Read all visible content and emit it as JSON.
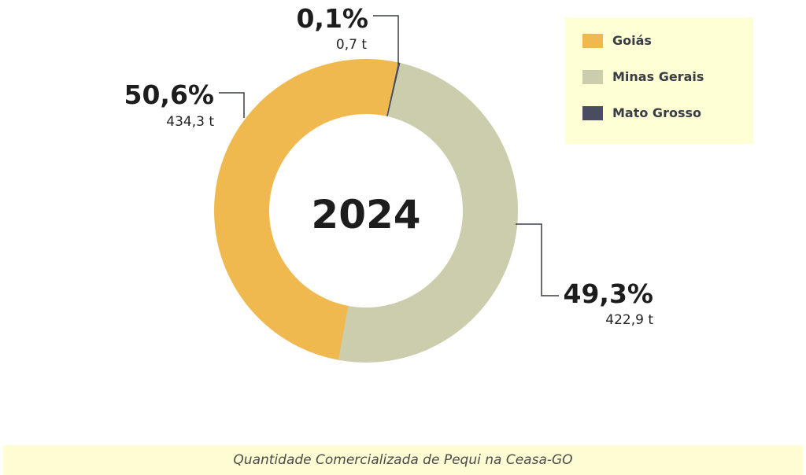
{
  "chart_data": {
    "type": "pie",
    "variant": "donut",
    "center_label": "2024",
    "categories": [
      "Goiás",
      "Minas Gerais",
      "Mato Grosso"
    ],
    "values": [
      434.3,
      422.9,
      0.7
    ],
    "unit": "t",
    "percent_labels": [
      "50,6%",
      "49,3%",
      "0,1%"
    ],
    "value_labels": [
      "434,3 t",
      "422,9 t",
      "0,7 t"
    ],
    "colors": [
      "#efb94f",
      "#cbcdad",
      "#4a4d60"
    ],
    "legend": "top-right",
    "title": "Quantidade Comercializada de Pequi na Ceasa-GO"
  }
}
